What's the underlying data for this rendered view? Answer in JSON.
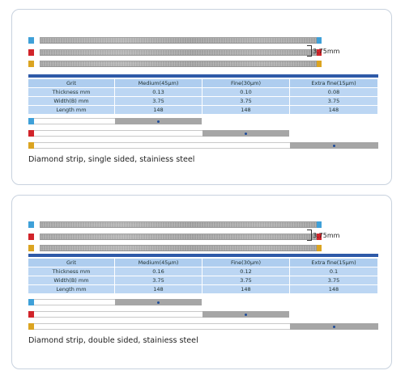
{
  "colors": {
    "blue": "#3fa0d8",
    "red": "#d1242a",
    "yellow": "#dba421",
    "bar": "#2e5aa8",
    "table_head": "#aecdef",
    "table_row": "#bcd6f3"
  },
  "panels": [
    {
      "dimension": "3.75mm",
      "table": {
        "headers": [
          "Grit",
          "Medium(45μm)",
          "Fine(30μm)",
          "Extra fine(15μm)"
        ],
        "rows": [
          [
            "Thickness mm",
            "0.13",
            "0.10",
            "0.08"
          ],
          [
            "Width(B) mm",
            "3.75",
            "3.75",
            "3.75"
          ],
          [
            "Length mm",
            "148",
            "148",
            "148"
          ]
        ]
      },
      "caption": "Diamond strip, single sided, stainiess steel"
    },
    {
      "dimension": "3.75mm",
      "table": {
        "headers": [
          "Grit",
          "Medium(45μm)",
          "Fine(30μm)",
          "Extra fine(15μm)"
        ],
        "rows": [
          [
            "Thickness mm",
            "0.16",
            "0.12",
            "0.1"
          ],
          [
            "Width(B) mm",
            "3.75",
            "3.75",
            "3.75"
          ],
          [
            "Length mm",
            "148",
            "148",
            "148"
          ]
        ]
      },
      "caption": "Diamond strip, double sided, stainiess steel"
    }
  ]
}
